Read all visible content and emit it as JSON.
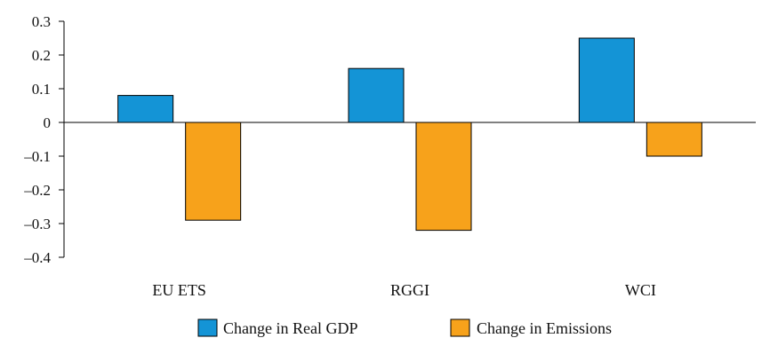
{
  "chart_data": {
    "type": "bar",
    "categories": [
      "EU ETS",
      "RGGI",
      "WCI"
    ],
    "series": [
      {
        "name": "Change in Real GDP",
        "values": [
          0.08,
          0.16,
          0.25
        ],
        "color": "#1494d6"
      },
      {
        "name": "Change in Emissions",
        "values": [
          -0.29,
          -0.32,
          -0.1
        ],
        "color": "#f7a21b"
      }
    ],
    "ylim": [
      -0.4,
      0.3
    ],
    "yticks": [
      0.3,
      0.2,
      0.1,
      0,
      -0.1,
      -0.2,
      -0.3,
      -0.4
    ],
    "ytick_labels": [
      "0.3",
      "0.2",
      "0.1",
      "0",
      "–0.1",
      "–0.2",
      "–0.3",
      "–0.4"
    ],
    "grid": false,
    "legend_position": "bottom-center",
    "title": "",
    "xlabel": "",
    "ylabel": ""
  }
}
